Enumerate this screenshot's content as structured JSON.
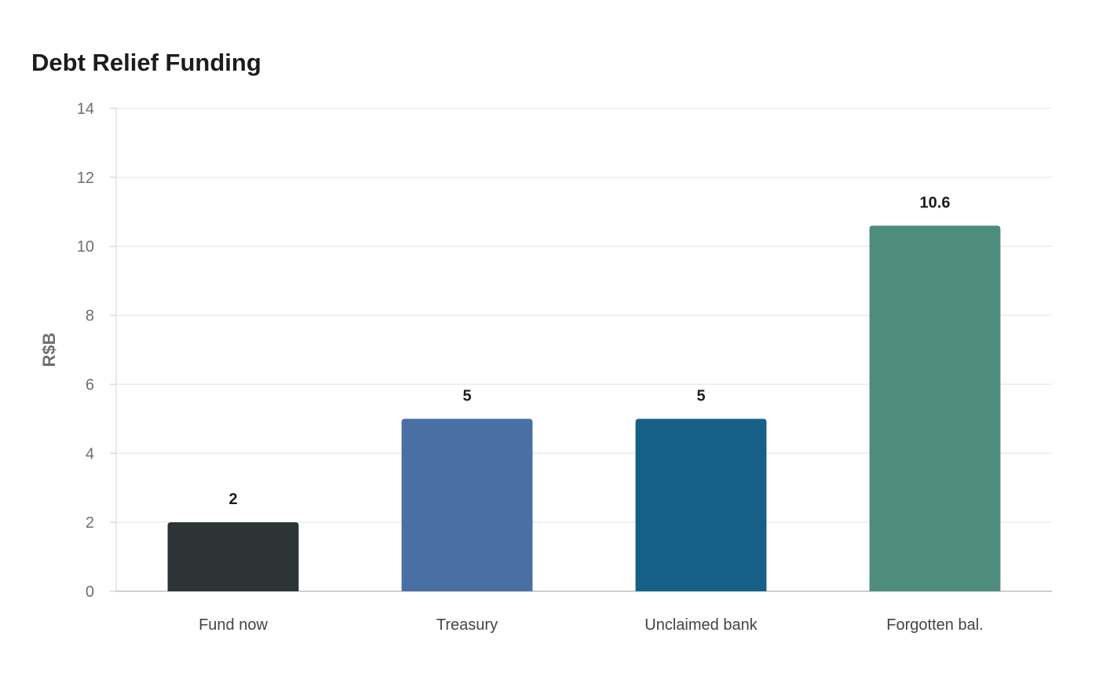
{
  "chart_data": {
    "type": "bar",
    "title": "Debt Relief Funding",
    "xlabel": "",
    "ylabel": "R$B",
    "categories": [
      "Fund now",
      "Treasury",
      "Unclaimed bank",
      "Forgotten bal."
    ],
    "values": [
      2,
      5,
      5,
      10.6
    ],
    "data_labels": [
      "2",
      "5",
      "5",
      "10.6"
    ],
    "colors": [
      "#2d3436",
      "#4a6fa5",
      "#166088",
      "#4e8d7c"
    ],
    "ylim": [
      0,
      14
    ],
    "yticks": [
      0,
      2,
      4,
      6,
      8,
      10,
      12,
      14
    ],
    "grid": true,
    "legend": "none"
  }
}
